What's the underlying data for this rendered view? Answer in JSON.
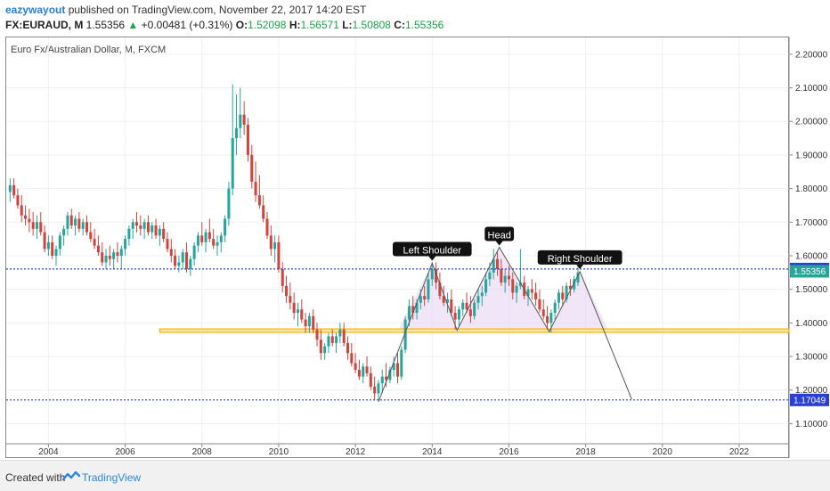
{
  "header": {
    "author": "eazywayout",
    "published": "published on TradingView.com, November 22, 2017 14:20 EST",
    "symbol": "FX:EURAUD, M",
    "last": "1.55356",
    "change_arrow": "▲",
    "change": "+0.00481 (+0.31%)",
    "open_label": "O:",
    "open": "1.52098",
    "high_label": "H:",
    "high": "1.56571",
    "low_label": "L:",
    "low": "1.50808",
    "close_label": "C:",
    "close": "1.55356"
  },
  "footer": {
    "created_with": "Created with",
    "brand": "TradingView",
    "logo_icon": "tradingview-logo-icon"
  },
  "chart_data": {
    "type": "candlestick",
    "title": "Euro Fx/Australian Dollar, M, FXCM",
    "x_ticks": [
      "2004",
      "2006",
      "2008",
      "2010",
      "2012",
      "2014",
      "2016",
      "2018",
      "2020",
      "2022"
    ],
    "y_ticks": [
      "1.10000",
      "1.20000",
      "1.30000",
      "1.40000",
      "1.50000",
      "1.60000",
      "1.70000",
      "1.80000",
      "1.90000",
      "2.00000",
      "2.10000",
      "2.20000"
    ],
    "xlim": [
      2002.9,
      2023.3
    ],
    "ylim": [
      1.04,
      2.25
    ],
    "colors": {
      "up": "#26a69a",
      "down": "#d0443e",
      "level_line": "#2a3fd6",
      "support_band": "#f5b301",
      "pattern_fill": "#e6d2f2"
    },
    "price_labels": [
      {
        "value": 1.56033,
        "text": "1.56033",
        "color": "#2a3fd6"
      },
      {
        "value": 1.55356,
        "text": "1.55356",
        "color": "#26a69a"
      },
      {
        "value": 1.17049,
        "text": "1.17049",
        "color": "#2a3fd6"
      }
    ],
    "horizontal_lines": [
      {
        "y": 1.56033,
        "style": "dotted",
        "color": "#2a3fd6"
      },
      {
        "y": 1.17049,
        "style": "dotted",
        "color": "#2a3fd6"
      }
    ],
    "support_band": {
      "x_start": 2006.9,
      "y_low": 1.372,
      "y_high": 1.382
    },
    "annotations": [
      {
        "text": "Left Shoulder",
        "x": 2014.0,
        "y": 1.58
      },
      {
        "text": "Head",
        "x": 2015.75,
        "y": 1.625
      },
      {
        "text": "Right Shoulder",
        "x": 2017.85,
        "y": 1.555
      }
    ],
    "pattern": [
      [
        2012.6,
        1.165
      ],
      [
        2014.0,
        1.578
      ],
      [
        2014.65,
        1.378
      ],
      [
        2015.75,
        1.625
      ],
      [
        2017.05,
        1.374
      ],
      [
        2017.85,
        1.553
      ],
      [
        2019.2,
        1.173
      ]
    ],
    "candles": [
      [
        2003.0,
        1.79,
        1.83,
        1.76,
        1.81
      ],
      [
        2003.1,
        1.81,
        1.83,
        1.77,
        1.78
      ],
      [
        2003.2,
        1.78,
        1.8,
        1.74,
        1.75
      ],
      [
        2003.3,
        1.75,
        1.78,
        1.7,
        1.72
      ],
      [
        2003.4,
        1.72,
        1.75,
        1.69,
        1.71
      ],
      [
        2003.5,
        1.71,
        1.74,
        1.67,
        1.7
      ],
      [
        2003.6,
        1.7,
        1.73,
        1.66,
        1.68
      ],
      [
        2003.7,
        1.68,
        1.72,
        1.65,
        1.7
      ],
      [
        2003.8,
        1.7,
        1.73,
        1.66,
        1.67
      ],
      [
        2003.9,
        1.67,
        1.69,
        1.61,
        1.62
      ],
      [
        2004.0,
        1.62,
        1.66,
        1.6,
        1.64
      ],
      [
        2004.1,
        1.64,
        1.66,
        1.59,
        1.6
      ],
      [
        2004.2,
        1.6,
        1.63,
        1.57,
        1.62
      ],
      [
        2004.3,
        1.62,
        1.67,
        1.6,
        1.66
      ],
      [
        2004.4,
        1.66,
        1.69,
        1.63,
        1.68
      ],
      [
        2004.5,
        1.68,
        1.73,
        1.66,
        1.72
      ],
      [
        2004.6,
        1.72,
        1.74,
        1.68,
        1.69
      ],
      [
        2004.7,
        1.69,
        1.72,
        1.66,
        1.71
      ],
      [
        2004.8,
        1.71,
        1.73,
        1.67,
        1.68
      ],
      [
        2004.9,
        1.68,
        1.71,
        1.66,
        1.7
      ],
      [
        2005.0,
        1.7,
        1.72,
        1.66,
        1.67
      ],
      [
        2005.1,
        1.67,
        1.7,
        1.64,
        1.65
      ],
      [
        2005.2,
        1.65,
        1.68,
        1.62,
        1.63
      ],
      [
        2005.3,
        1.63,
        1.66,
        1.6,
        1.61
      ],
      [
        2005.4,
        1.61,
        1.64,
        1.57,
        1.58
      ],
      [
        2005.5,
        1.58,
        1.62,
        1.56,
        1.6
      ],
      [
        2005.6,
        1.6,
        1.63,
        1.57,
        1.59
      ],
      [
        2005.7,
        1.59,
        1.62,
        1.56,
        1.61
      ],
      [
        2005.8,
        1.61,
        1.64,
        1.58,
        1.6
      ],
      [
        2005.9,
        1.6,
        1.63,
        1.56,
        1.62
      ],
      [
        2006.0,
        1.62,
        1.66,
        1.6,
        1.65
      ],
      [
        2006.1,
        1.65,
        1.69,
        1.63,
        1.68
      ],
      [
        2006.2,
        1.68,
        1.71,
        1.65,
        1.7
      ],
      [
        2006.3,
        1.7,
        1.73,
        1.67,
        1.69
      ],
      [
        2006.4,
        1.69,
        1.72,
        1.66,
        1.68
      ],
      [
        2006.5,
        1.68,
        1.71,
        1.65,
        1.7
      ],
      [
        2006.6,
        1.7,
        1.72,
        1.66,
        1.67
      ],
      [
        2006.7,
        1.67,
        1.7,
        1.65,
        1.69
      ],
      [
        2006.8,
        1.69,
        1.71,
        1.65,
        1.66
      ],
      [
        2006.9,
        1.66,
        1.69,
        1.63,
        1.68
      ],
      [
        2007.0,
        1.68,
        1.7,
        1.64,
        1.65
      ],
      [
        2007.1,
        1.65,
        1.67,
        1.61,
        1.62
      ],
      [
        2007.2,
        1.62,
        1.65,
        1.58,
        1.6
      ],
      [
        2007.3,
        1.6,
        1.62,
        1.56,
        1.57
      ],
      [
        2007.4,
        1.57,
        1.6,
        1.55,
        1.58
      ],
      [
        2007.5,
        1.58,
        1.62,
        1.56,
        1.61
      ],
      [
        2007.6,
        1.61,
        1.64,
        1.55,
        1.56
      ],
      [
        2007.7,
        1.56,
        1.6,
        1.54,
        1.59
      ],
      [
        2007.8,
        1.59,
        1.64,
        1.57,
        1.63
      ],
      [
        2007.9,
        1.63,
        1.67,
        1.61,
        1.66
      ],
      [
        2008.0,
        1.66,
        1.7,
        1.63,
        1.64
      ],
      [
        2008.1,
        1.64,
        1.68,
        1.61,
        1.67
      ],
      [
        2008.2,
        1.67,
        1.71,
        1.64,
        1.65
      ],
      [
        2008.3,
        1.65,
        1.68,
        1.62,
        1.63
      ],
      [
        2008.4,
        1.63,
        1.66,
        1.6,
        1.64
      ],
      [
        2008.5,
        1.64,
        1.67,
        1.61,
        1.66
      ],
      [
        2008.6,
        1.66,
        1.72,
        1.64,
        1.71
      ],
      [
        2008.7,
        1.71,
        1.82,
        1.69,
        1.8
      ],
      [
        2008.8,
        1.8,
        2.11,
        1.78,
        1.95
      ],
      [
        2008.9,
        1.95,
        2.08,
        1.9,
        1.98
      ],
      [
        2009.0,
        1.98,
        2.1,
        1.95,
        2.02
      ],
      [
        2009.1,
        2.02,
        2.06,
        1.96,
        1.99
      ],
      [
        2009.2,
        1.99,
        2.01,
        1.88,
        1.9
      ],
      [
        2009.3,
        1.9,
        1.93,
        1.8,
        1.82
      ],
      [
        2009.4,
        1.82,
        1.88,
        1.76,
        1.78
      ],
      [
        2009.5,
        1.78,
        1.84,
        1.74,
        1.75
      ],
      [
        2009.6,
        1.75,
        1.78,
        1.7,
        1.71
      ],
      [
        2009.7,
        1.71,
        1.73,
        1.65,
        1.66
      ],
      [
        2009.8,
        1.66,
        1.69,
        1.6,
        1.62
      ],
      [
        2009.9,
        1.62,
        1.66,
        1.58,
        1.64
      ],
      [
        2010.0,
        1.64,
        1.66,
        1.55,
        1.56
      ],
      [
        2010.1,
        1.56,
        1.58,
        1.49,
        1.51
      ],
      [
        2010.2,
        1.51,
        1.54,
        1.46,
        1.48
      ],
      [
        2010.3,
        1.48,
        1.52,
        1.44,
        1.46
      ],
      [
        2010.4,
        1.46,
        1.49,
        1.41,
        1.43
      ],
      [
        2010.5,
        1.43,
        1.46,
        1.39,
        1.44
      ],
      [
        2010.6,
        1.44,
        1.47,
        1.4,
        1.41
      ],
      [
        2010.7,
        1.41,
        1.43,
        1.37,
        1.39
      ],
      [
        2010.8,
        1.39,
        1.43,
        1.37,
        1.42
      ],
      [
        2010.9,
        1.42,
        1.44,
        1.37,
        1.38
      ],
      [
        2011.0,
        1.38,
        1.4,
        1.33,
        1.35
      ],
      [
        2011.1,
        1.35,
        1.38,
        1.29,
        1.31
      ],
      [
        2011.2,
        1.31,
        1.34,
        1.29,
        1.33
      ],
      [
        2011.3,
        1.33,
        1.37,
        1.31,
        1.36
      ],
      [
        2011.4,
        1.36,
        1.38,
        1.33,
        1.34
      ],
      [
        2011.5,
        1.34,
        1.37,
        1.31,
        1.36
      ],
      [
        2011.6,
        1.36,
        1.4,
        1.34,
        1.38
      ],
      [
        2011.7,
        1.38,
        1.4,
        1.33,
        1.34
      ],
      [
        2011.8,
        1.34,
        1.36,
        1.29,
        1.31
      ],
      [
        2011.9,
        1.31,
        1.34,
        1.27,
        1.28
      ],
      [
        2012.0,
        1.28,
        1.31,
        1.25,
        1.26
      ],
      [
        2012.1,
        1.26,
        1.29,
        1.23,
        1.24
      ],
      [
        2012.2,
        1.24,
        1.28,
        1.22,
        1.27
      ],
      [
        2012.3,
        1.27,
        1.3,
        1.24,
        1.25
      ],
      [
        2012.4,
        1.25,
        1.27,
        1.2,
        1.21
      ],
      [
        2012.5,
        1.21,
        1.24,
        1.17,
        1.19
      ],
      [
        2012.6,
        1.19,
        1.23,
        1.17,
        1.22
      ],
      [
        2012.7,
        1.22,
        1.26,
        1.19,
        1.24
      ],
      [
        2012.8,
        1.24,
        1.28,
        1.21,
        1.23
      ],
      [
        2012.9,
        1.23,
        1.27,
        1.22,
        1.26
      ],
      [
        2013.0,
        1.26,
        1.3,
        1.24,
        1.28
      ],
      [
        2013.1,
        1.28,
        1.31,
        1.22,
        1.24
      ],
      [
        2013.2,
        1.24,
        1.33,
        1.23,
        1.32
      ],
      [
        2013.3,
        1.32,
        1.42,
        1.31,
        1.41
      ],
      [
        2013.4,
        1.41,
        1.47,
        1.39,
        1.45
      ],
      [
        2013.5,
        1.45,
        1.48,
        1.41,
        1.43
      ],
      [
        2013.6,
        1.43,
        1.47,
        1.41,
        1.46
      ],
      [
        2013.7,
        1.46,
        1.5,
        1.44,
        1.48
      ],
      [
        2013.8,
        1.48,
        1.51,
        1.45,
        1.47
      ],
      [
        2013.9,
        1.47,
        1.55,
        1.46,
        1.53
      ],
      [
        2014.0,
        1.53,
        1.58,
        1.51,
        1.56
      ],
      [
        2014.1,
        1.56,
        1.58,
        1.5,
        1.52
      ],
      [
        2014.2,
        1.52,
        1.55,
        1.47,
        1.48
      ],
      [
        2014.3,
        1.48,
        1.51,
        1.45,
        1.46
      ],
      [
        2014.4,
        1.46,
        1.49,
        1.43,
        1.47
      ],
      [
        2014.5,
        1.47,
        1.5,
        1.42,
        1.43
      ],
      [
        2014.6,
        1.43,
        1.45,
        1.38,
        1.41
      ],
      [
        2014.7,
        1.41,
        1.45,
        1.39,
        1.44
      ],
      [
        2014.8,
        1.44,
        1.47,
        1.42,
        1.46
      ],
      [
        2014.9,
        1.46,
        1.49,
        1.43,
        1.44
      ],
      [
        2015.0,
        1.44,
        1.48,
        1.4,
        1.42
      ],
      [
        2015.1,
        1.42,
        1.47,
        1.41,
        1.46
      ],
      [
        2015.2,
        1.46,
        1.5,
        1.44,
        1.48
      ],
      [
        2015.3,
        1.48,
        1.51,
        1.45,
        1.49
      ],
      [
        2015.4,
        1.49,
        1.55,
        1.48,
        1.53
      ],
      [
        2015.5,
        1.53,
        1.58,
        1.51,
        1.55
      ],
      [
        2015.6,
        1.55,
        1.62,
        1.53,
        1.59
      ],
      [
        2015.7,
        1.59,
        1.61,
        1.54,
        1.56
      ],
      [
        2015.8,
        1.56,
        1.59,
        1.51,
        1.52
      ],
      [
        2015.9,
        1.52,
        1.56,
        1.49,
        1.54
      ],
      [
        2016.0,
        1.54,
        1.57,
        1.51,
        1.53
      ],
      [
        2016.1,
        1.53,
        1.55,
        1.47,
        1.49
      ],
      [
        2016.2,
        1.49,
        1.52,
        1.46,
        1.51
      ],
      [
        2016.3,
        1.51,
        1.62,
        1.5,
        1.52
      ],
      [
        2016.4,
        1.52,
        1.54,
        1.47,
        1.48
      ],
      [
        2016.5,
        1.48,
        1.51,
        1.45,
        1.5
      ],
      [
        2016.6,
        1.5,
        1.53,
        1.47,
        1.49
      ],
      [
        2016.7,
        1.49,
        1.52,
        1.45,
        1.47
      ],
      [
        2016.8,
        1.47,
        1.5,
        1.43,
        1.44
      ],
      [
        2016.9,
        1.44,
        1.47,
        1.41,
        1.42
      ],
      [
        2017.0,
        1.42,
        1.45,
        1.38,
        1.4
      ],
      [
        2017.1,
        1.4,
        1.44,
        1.37,
        1.43
      ],
      [
        2017.2,
        1.43,
        1.47,
        1.41,
        1.46
      ],
      [
        2017.3,
        1.46,
        1.5,
        1.44,
        1.49
      ],
      [
        2017.4,
        1.49,
        1.51,
        1.45,
        1.47
      ],
      [
        2017.5,
        1.47,
        1.52,
        1.46,
        1.51
      ],
      [
        2017.6,
        1.51,
        1.53,
        1.48,
        1.5
      ],
      [
        2017.7,
        1.5,
        1.54,
        1.49,
        1.53
      ],
      [
        2017.8,
        1.52,
        1.57,
        1.51,
        1.55
      ]
    ]
  }
}
